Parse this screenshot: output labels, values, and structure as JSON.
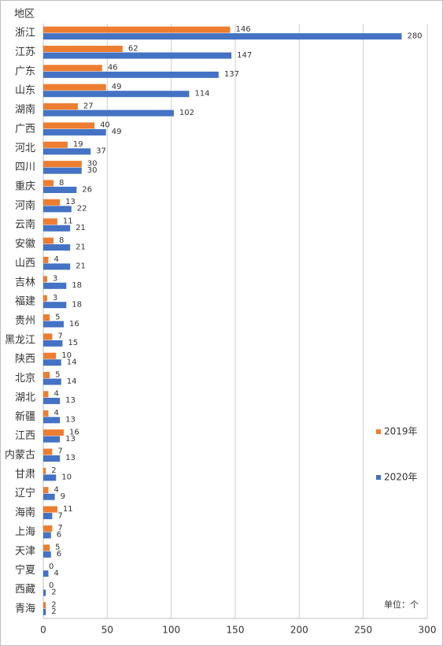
{
  "chart_data": {
    "type": "bar",
    "orientation": "horizontal",
    "y_label": "地区",
    "annotation": "单位：个",
    "categories": [
      "浙江",
      "江苏",
      "广东",
      "山东",
      "湖南",
      "广西",
      "河北",
      "四川",
      "重庆",
      "河南",
      "云南",
      "安徽",
      "山西",
      "吉林",
      "福建",
      "贵州",
      "黑龙江",
      "陕西",
      "北京",
      "湖北",
      "新疆",
      "江西",
      "内蒙古",
      "甘肃",
      "辽宁",
      "海南",
      "上海",
      "天津",
      "宁夏",
      "西藏",
      "青海"
    ],
    "series": [
      {
        "name": "2019年",
        "color": "#ed7d31",
        "values": [
          146,
          62,
          46,
          49,
          27,
          40,
          19,
          30,
          8,
          13,
          11,
          8,
          4,
          3,
          3,
          5,
          7,
          10,
          5,
          4,
          4,
          16,
          7,
          2,
          4,
          11,
          7,
          5,
          0,
          0,
          2
        ]
      },
      {
        "name": "2020年",
        "color": "#4472c4",
        "values": [
          280,
          147,
          137,
          114,
          102,
          49,
          37,
          30,
          26,
          22,
          21,
          21,
          21,
          18,
          18,
          16,
          15,
          14,
          14,
          13,
          13,
          13,
          13,
          10,
          9,
          7,
          6,
          6,
          4,
          2,
          2
        ]
      }
    ],
    "xlim": [
      0,
      300
    ],
    "xticks": [
      0,
      50,
      100,
      150,
      200,
      250,
      300
    ],
    "grid": true,
    "legend": "right"
  }
}
